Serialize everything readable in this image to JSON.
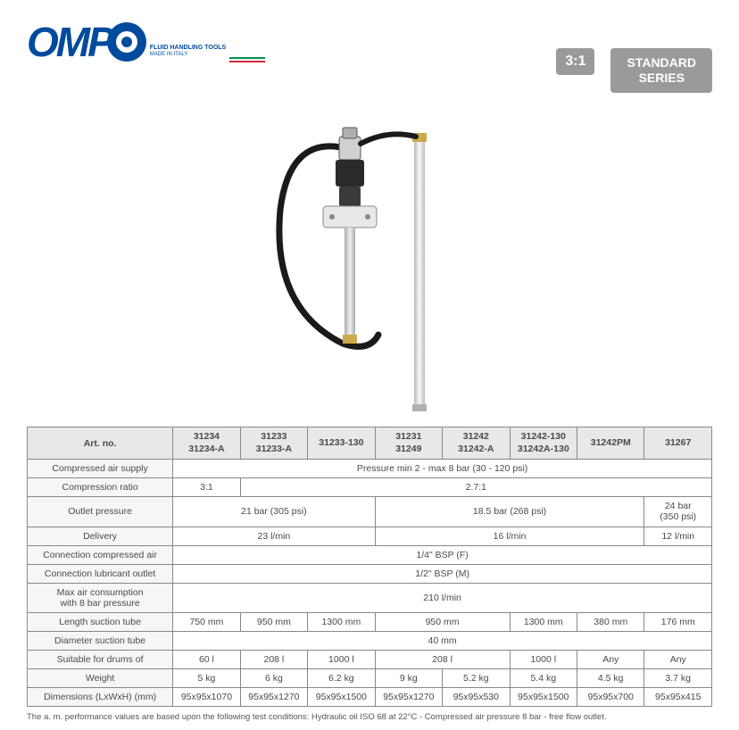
{
  "logo": {
    "letters": "OMP",
    "tagline1": "FLUID HANDLING TOOLS",
    "tagline2": "MADE IN ITALY",
    "brand_color": "#004b9e",
    "flag_colors": [
      "#009246",
      "#ffffff",
      "#ce2b37"
    ]
  },
  "badges": {
    "ratio": "3:1",
    "series_line1": "STANDARD",
    "series_line2": "SERIES",
    "badge_bg": "#9a9a9a"
  },
  "table": {
    "header_label": "Art. no.",
    "art_numbers": [
      "31234\n31234-A",
      "31233\n31233-A",
      "31233-130",
      "31231\n31249",
      "31242\n31242-A",
      "31242-130\n31242A-130",
      "31242PM",
      "31267"
    ],
    "rows": [
      {
        "label": "Compressed air supply",
        "cells": [
          {
            "span": 8,
            "text": "Pressure min 2 - max 8 bar (30 - 120 psi)"
          }
        ]
      },
      {
        "label": "Compression ratio",
        "cells": [
          {
            "span": 1,
            "text": "3:1"
          },
          {
            "span": 7,
            "text": "2.7:1"
          }
        ]
      },
      {
        "label": "Outlet pressure",
        "cells": [
          {
            "span": 3,
            "text": "21 bar (305 psi)"
          },
          {
            "span": 4,
            "text": "18.5 bar (268 psi)"
          },
          {
            "span": 1,
            "text": "24 bar\n(350 psi)"
          }
        ]
      },
      {
        "label": "Delivery",
        "cells": [
          {
            "span": 3,
            "text": "23  l/min"
          },
          {
            "span": 4,
            "text": "16  l/min"
          },
          {
            "span": 1,
            "text": "12  l/min"
          }
        ]
      },
      {
        "label": "Connection compressed air",
        "cells": [
          {
            "span": 8,
            "text": "1/4\" BSP (F)"
          }
        ]
      },
      {
        "label": "Connection lubricant outlet",
        "cells": [
          {
            "span": 8,
            "text": "1/2\" BSP (M)"
          }
        ]
      },
      {
        "label": "Max air consumption\nwith 8 bar pressure",
        "cells": [
          {
            "span": 8,
            "text": "210  l/min"
          }
        ]
      },
      {
        "label": "Length suction tube",
        "cells": [
          {
            "span": 1,
            "text": "750 mm"
          },
          {
            "span": 1,
            "text": "950 mm"
          },
          {
            "span": 1,
            "text": "1300 mm"
          },
          {
            "span": 2,
            "text": "950 mm"
          },
          {
            "span": 1,
            "text": "1300 mm"
          },
          {
            "span": 1,
            "text": "380 mm"
          },
          {
            "span": 1,
            "text": "176 mm"
          }
        ]
      },
      {
        "label": "Diameter suction tube",
        "cells": [
          {
            "span": 8,
            "text": "40 mm"
          }
        ]
      },
      {
        "label": "Suitable for drums of",
        "cells": [
          {
            "span": 1,
            "text": "60 l"
          },
          {
            "span": 1,
            "text": "208 l"
          },
          {
            "span": 1,
            "text": "1000 l"
          },
          {
            "span": 2,
            "text": "208 l"
          },
          {
            "span": 1,
            "text": "1000 l"
          },
          {
            "span": 1,
            "text": "Any"
          },
          {
            "span": 1,
            "text": "Any"
          }
        ]
      },
      {
        "label": "Weight",
        "cells": [
          {
            "span": 1,
            "text": "5 kg"
          },
          {
            "span": 1,
            "text": "6 kg"
          },
          {
            "span": 1,
            "text": "6.2 kg"
          },
          {
            "span": 1,
            "text": "9 kg"
          },
          {
            "span": 1,
            "text": "5.2 kg"
          },
          {
            "span": 1,
            "text": "5.4 kg"
          },
          {
            "span": 1,
            "text": "4.5 kg"
          },
          {
            "span": 1,
            "text": "3.7 kg"
          }
        ]
      },
      {
        "label": "Dimensions (LxWxH) (mm)",
        "cells": [
          {
            "span": 1,
            "text": "95x95x1070"
          },
          {
            "span": 1,
            "text": "95x95x1270"
          },
          {
            "span": 1,
            "text": "95x95x1500"
          },
          {
            "span": 1,
            "text": "95x95x1270"
          },
          {
            "span": 1,
            "text": "95x95x530"
          },
          {
            "span": 1,
            "text": "95x95x1500"
          },
          {
            "span": 1,
            "text": "95x95x700"
          },
          {
            "span": 1,
            "text": "95x95x415"
          }
        ]
      }
    ]
  },
  "footnote": "The a. m. performance values are based upon the following test conditions: Hydraulic oil ISO 68 at 22°C - Compressed air pressure 8 bar - free flow outlet.",
  "colors": {
    "header_bg": "#e8e8e8",
    "row_label_bg": "#f5f6f8",
    "border": "#888888",
    "text": "#4a4a4a"
  }
}
